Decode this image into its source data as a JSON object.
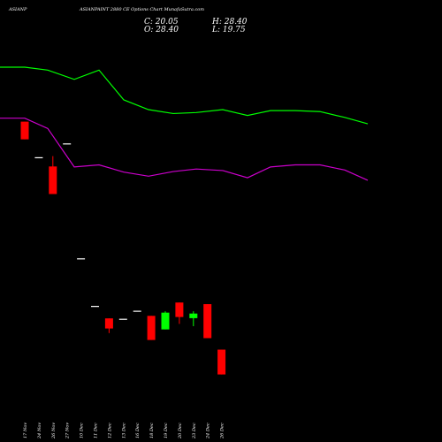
{
  "header": {
    "symbol": "ASIANP",
    "title": "ASIANPAINT 2880 CE Options Chart MunafaSutra.com",
    "close": "C: 20.05",
    "open": "O: 28.40",
    "high": "H: 28.40",
    "low": "L: 19.75"
  },
  "colors": {
    "background": "#000000",
    "up": "#00ff00",
    "down": "#ff0000",
    "flat": "#ffffff",
    "upper_band": "#00ff00",
    "lower_band": "#cc00cc",
    "text": "#ffffff"
  },
  "chart_data": {
    "type": "candlestick",
    "categories": [
      "17 Nov",
      "24 Nov",
      "26 Nov",
      "27 Nov",
      "10 Dec",
      "11 Dec",
      "12 Dec",
      "13 Dec",
      "16 Dec",
      "18 Dec",
      "19 Dec",
      "20 Dec",
      "23 Dec",
      "24 Dec",
      "26 Dec"
    ],
    "ylim": [
      0,
      140
    ],
    "candles": [
      {
        "open": 114.0,
        "high": 114.0,
        "low": 106.3,
        "close": 106.3
      },
      {
        "open": 98.3,
        "high": 98.3,
        "low": 98.3,
        "close": 98.3
      },
      {
        "open": 94.5,
        "high": 99.0,
        "low": 82.5,
        "close": 82.5
      },
      {
        "open": 104.3,
        "high": 104.3,
        "low": 104.3,
        "close": 104.3
      },
      {
        "open": 54.3,
        "high": 54.3,
        "low": 54.3,
        "close": 54.3
      },
      {
        "open": 33.6,
        "high": 33.6,
        "low": 33.6,
        "close": 33.6
      },
      {
        "open": 28.4,
        "high": 28.4,
        "low": 22.0,
        "close": 24.0
      },
      {
        "open": 28.0,
        "high": 28.0,
        "low": 28.0,
        "close": 28.0
      },
      {
        "open": 31.5,
        "high": 31.5,
        "low": 31.5,
        "close": 31.5
      },
      {
        "open": 29.5,
        "high": 29.5,
        "low": 19.0,
        "close": 19.0
      },
      {
        "open": 23.6,
        "high": 31.5,
        "low": 23.6,
        "close": 30.9
      },
      {
        "open": 35.3,
        "high": 35.3,
        "low": 26.0,
        "close": 29.0
      },
      {
        "open": 28.5,
        "high": 31.5,
        "low": 25.0,
        "close": 30.5
      },
      {
        "open": 34.6,
        "high": 34.6,
        "low": 19.8,
        "close": 19.8
      },
      {
        "open": 14.8,
        "high": 14.8,
        "low": 4.0,
        "close": 4.0
      }
    ],
    "upper_band": [
      {
        "x": 0,
        "y": 369.6
      },
      {
        "x": 28,
        "y": 369.6
      },
      {
        "x": 54,
        "y": 362.4
      },
      {
        "x": 84,
        "y": 339.6
      },
      {
        "x": 112,
        "y": 362.4
      },
      {
        "x": 140,
        "y": 289.2
      },
      {
        "x": 168,
        "y": 265.2
      },
      {
        "x": 196,
        "y": 255.6
      },
      {
        "x": 222,
        "y": 258
      },
      {
        "x": 252,
        "y": 265.2
      },
      {
        "x": 280,
        "y": 250.8
      },
      {
        "x": 306,
        "y": 262.8
      },
      {
        "x": 334,
        "y": 262.8
      },
      {
        "x": 362,
        "y": 260.4
      },
      {
        "x": 390,
        "y": 246
      },
      {
        "x": 416,
        "y": 230.4
      }
    ],
    "lower_band": [
      {
        "x": 0,
        "y": 205.2
      },
      {
        "x": 28,
        "y": 205.2
      },
      {
        "x": 54,
        "y": 181.2
      },
      {
        "x": 84,
        "y": 91.2
      },
      {
        "x": 112,
        "y": 96
      },
      {
        "x": 140,
        "y": 79.2
      },
      {
        "x": 168,
        "y": 69.6
      },
      {
        "x": 196,
        "y": 80.4
      },
      {
        "x": 222,
        "y": 86.4
      },
      {
        "x": 252,
        "y": 82.8
      },
      {
        "x": 280,
        "y": 66
      },
      {
        "x": 306,
        "y": 91.2
      },
      {
        "x": 334,
        "y": 96
      },
      {
        "x": 362,
        "y": 96
      },
      {
        "x": 390,
        "y": 84
      },
      {
        "x": 416,
        "y": 60
      }
    ]
  }
}
